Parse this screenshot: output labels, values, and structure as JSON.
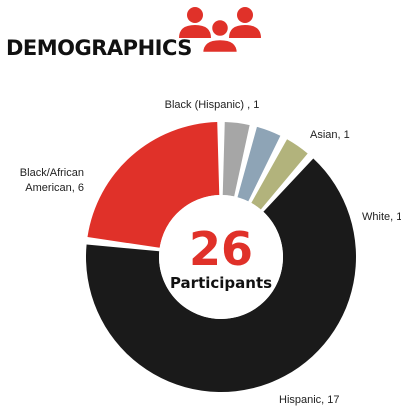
{
  "header": {
    "title": "DEMOGRAPHICS",
    "icon": "people-group-icon",
    "icon_color": "#e03129"
  },
  "center": {
    "value": "26",
    "label": "Participants"
  },
  "chart_data": {
    "type": "pie",
    "variant": "donut",
    "title": "DEMOGRAPHICS",
    "start": "12 o'clock, clockwise",
    "slices": [
      {
        "name": "Black (Hispanic)",
        "value": 1,
        "label": "Black (Hispanic) , 1",
        "color": "#a6a6a6"
      },
      {
        "name": "Asian",
        "value": 1,
        "label": "Asian, 1",
        "color": "#8ea4b6"
      },
      {
        "name": "White",
        "value": 1,
        "label": "White, 1",
        "color": "#b2b37c"
      },
      {
        "name": "Hispanic",
        "value": 17,
        "label": "Hispanic, 17",
        "color": "#1a1a1a"
      },
      {
        "name": "Black/African American",
        "value": 6,
        "label": [
          "Black/African",
          "American, 6"
        ],
        "color": "#e03129"
      }
    ],
    "total": 26
  }
}
